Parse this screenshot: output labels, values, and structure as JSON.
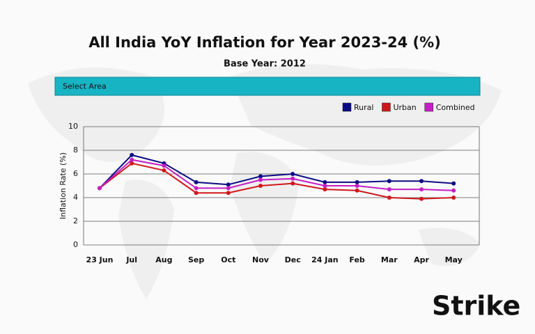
{
  "chart_data": {
    "type": "line",
    "title": "All India YoY Inflation for Year 2023-24 (%)",
    "subtitle": "Base Year: 2012",
    "area_selector": "Select Area",
    "y_label": "Inflation Rate (%)",
    "brand": "Strike",
    "categories": [
      "23 Jun",
      "Jul",
      "Aug",
      "Sep",
      "Oct",
      "Nov",
      "Dec",
      "24 Jan",
      "Feb",
      "Mar",
      "Apr",
      "May"
    ],
    "series": [
      {
        "name": "Rural",
        "color": "#0b0b85",
        "values": [
          4.8,
          7.6,
          6.9,
          5.3,
          5.1,
          5.8,
          6.0,
          5.3,
          5.3,
          5.4,
          5.4,
          5.2
        ]
      },
      {
        "name": "Urban",
        "color": "#d0181c",
        "values": [
          4.8,
          6.9,
          6.3,
          4.4,
          4.4,
          5.0,
          5.2,
          4.7,
          4.6,
          4.0,
          3.9,
          4.0
        ]
      },
      {
        "name": "Combined",
        "color": "#c41fc4",
        "values": [
          4.8,
          7.2,
          6.7,
          4.8,
          4.8,
          5.5,
          5.6,
          5.0,
          5.0,
          4.7,
          4.7,
          4.6
        ]
      }
    ],
    "ylim": [
      0,
      10
    ],
    "yticks": [
      0,
      2,
      4,
      6,
      8,
      10
    ],
    "grid": true
  }
}
